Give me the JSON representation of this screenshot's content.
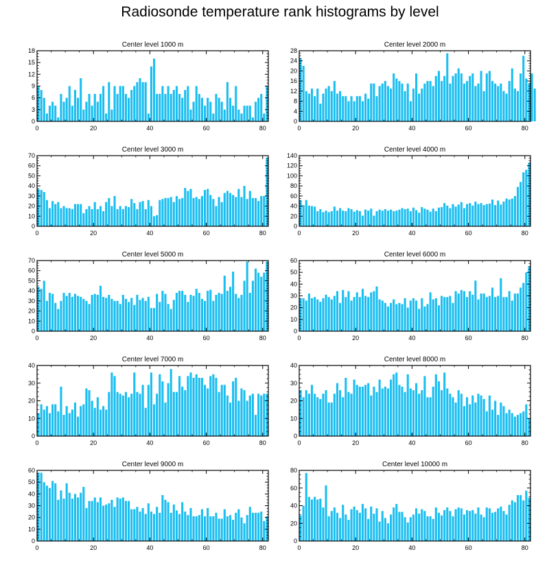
{
  "figure": {
    "title": "Radiosonde temperature rank histograms by level"
  },
  "style": {
    "bar_color": "#1BBEF0",
    "axis_color": "#000000"
  },
  "chart_data": [
    {
      "type": "bar",
      "title": "Center level 1000 m",
      "x_ticks": [
        0,
        20,
        40,
        60,
        80
      ],
      "y_ticks": [
        0,
        3,
        6,
        9,
        12,
        15,
        18
      ],
      "ylim": [
        0,
        18
      ],
      "xlim": [
        0,
        82
      ],
      "values": [
        9,
        8,
        6,
        2,
        4,
        5,
        4,
        1,
        7,
        5,
        6,
        9,
        4,
        8,
        6,
        11,
        3,
        5,
        7,
        4,
        7,
        5,
        7,
        9,
        2,
        10,
        3,
        9,
        7,
        9,
        9,
        7,
        6,
        8,
        9,
        10,
        11,
        10,
        10,
        2,
        14,
        16,
        7,
        7,
        9,
        7,
        9,
        7,
        8,
        9,
        7,
        6,
        8,
        9,
        3,
        5,
        9,
        7,
        6,
        4,
        6,
        5,
        2,
        7,
        6,
        5,
        3,
        10,
        6,
        4,
        9,
        3,
        2,
        4,
        4,
        4,
        1,
        5,
        6,
        7,
        2,
        9
      ]
    },
    {
      "type": "bar",
      "title": "Center level 2000 m",
      "x_ticks": [
        0,
        20,
        40,
        60,
        80
      ],
      "y_ticks": [
        0,
        4,
        8,
        12,
        16,
        20,
        24,
        28
      ],
      "ylim": [
        0,
        28
      ],
      "xlim": [
        0,
        82
      ],
      "values": [
        25,
        22,
        12,
        11,
        13,
        10,
        13,
        7,
        11,
        13,
        14,
        12,
        16,
        11,
        12,
        10,
        10,
        8,
        10,
        8,
        10,
        10,
        8,
        11,
        9,
        15,
        15,
        10,
        14,
        15,
        16,
        14,
        13,
        19,
        17,
        16,
        15,
        12,
        15,
        8,
        13,
        19,
        11,
        13,
        15,
        16,
        16,
        14,
        18,
        20,
        16,
        18,
        27,
        15,
        18,
        19,
        21,
        19,
        15,
        16,
        18,
        19,
        14,
        15,
        20,
        12,
        19,
        20,
        16,
        15,
        14,
        15,
        12,
        11,
        16,
        21,
        13,
        12,
        19,
        26,
        17,
        15,
        19,
        13
      ]
    },
    {
      "type": "bar",
      "title": "Center level 3000 m",
      "x_ticks": [
        0,
        20,
        40,
        60,
        80
      ],
      "y_ticks": [
        0,
        10,
        20,
        30,
        40,
        50,
        60,
        70
      ],
      "ylim": [
        0,
        70
      ],
      "xlim": [
        0,
        82
      ],
      "values": [
        37,
        36,
        34,
        26,
        18,
        25,
        22,
        24,
        18,
        20,
        18,
        18,
        17,
        22,
        22,
        22,
        13,
        17,
        20,
        17,
        24,
        17,
        20,
        15,
        24,
        28,
        20,
        30,
        17,
        20,
        17,
        20,
        19,
        27,
        23,
        17,
        24,
        25,
        17,
        26,
        20,
        10,
        11,
        26,
        27,
        28,
        28,
        29,
        24,
        30,
        27,
        28,
        38,
        35,
        37,
        28,
        29,
        27,
        30,
        36,
        37,
        31,
        27,
        20,
        29,
        24,
        33,
        35,
        33,
        31,
        29,
        37,
        29,
        40,
        27,
        35,
        28,
        28,
        25,
        30,
        30,
        68
      ]
    },
    {
      "type": "bar",
      "title": "Center level 4000 m",
      "x_ticks": [
        0,
        20,
        40,
        60,
        80
      ],
      "y_ticks": [
        0,
        20,
        40,
        60,
        80,
        100,
        120,
        140
      ],
      "ylim": [
        0,
        140
      ],
      "xlim": [
        0,
        82
      ],
      "values": [
        52,
        42,
        52,
        41,
        40,
        39,
        30,
        34,
        28,
        31,
        28,
        30,
        39,
        31,
        36,
        31,
        30,
        36,
        34,
        29,
        32,
        30,
        21,
        33,
        31,
        35,
        21,
        30,
        33,
        31,
        34,
        31,
        33,
        30,
        31,
        33,
        36,
        34,
        35,
        30,
        37,
        32,
        27,
        38,
        35,
        33,
        29,
        35,
        30,
        37,
        38,
        46,
        41,
        36,
        44,
        39,
        43,
        48,
        36,
        44,
        46,
        41,
        49,
        44,
        46,
        42,
        44,
        45,
        53,
        42,
        51,
        43,
        49,
        55,
        53,
        55,
        60,
        78,
        88,
        107,
        112,
        126
      ]
    },
    {
      "type": "bar",
      "title": "Center level 5000 m",
      "x_ticks": [
        0,
        20,
        40,
        60,
        80
      ],
      "y_ticks": [
        0,
        10,
        20,
        30,
        40,
        50,
        60,
        70
      ],
      "ylim": [
        0,
        70
      ],
      "xlim": [
        0,
        82
      ],
      "values": [
        44,
        42,
        50,
        30,
        38,
        37,
        28,
        22,
        30,
        38,
        35,
        38,
        34,
        37,
        35,
        34,
        32,
        30,
        27,
        36,
        37,
        36,
        45,
        34,
        33,
        36,
        32,
        30,
        30,
        27,
        36,
        32,
        29,
        33,
        26,
        36,
        31,
        33,
        30,
        34,
        23,
        23,
        37,
        29,
        40,
        37,
        27,
        22,
        31,
        38,
        40,
        40,
        36,
        29,
        36,
        35,
        42,
        38,
        32,
        30,
        40,
        41,
        30,
        36,
        38,
        37,
        55,
        40,
        44,
        59,
        37,
        33,
        36,
        50,
        69,
        38,
        50,
        62,
        58,
        54,
        58,
        69
      ]
    },
    {
      "type": "bar",
      "title": "Center level 6000 m",
      "x_ticks": [
        0,
        20,
        40,
        60,
        80
      ],
      "y_ticks": [
        0,
        10,
        20,
        30,
        40,
        50,
        60
      ],
      "ylim": [
        0,
        60
      ],
      "xlim": [
        0,
        82
      ],
      "values": [
        28,
        28,
        26,
        32,
        28,
        29,
        27,
        25,
        28,
        31,
        29,
        27,
        30,
        34,
        24,
        35,
        29,
        34,
        26,
        29,
        33,
        29,
        36,
        30,
        29,
        33,
        34,
        38,
        27,
        26,
        24,
        21,
        24,
        27,
        23,
        24,
        23,
        28,
        20,
        26,
        28,
        26,
        19,
        28,
        21,
        23,
        33,
        27,
        28,
        22,
        30,
        29,
        29,
        30,
        24,
        34,
        32,
        35,
        34,
        29,
        34,
        31,
        43,
        27,
        32,
        32,
        29,
        30,
        37,
        29,
        30,
        45,
        29,
        29,
        34,
        26,
        32,
        32,
        37,
        41,
        50,
        55
      ]
    },
    {
      "type": "bar",
      "title": "Center level 7000 m",
      "x_ticks": [
        0,
        20,
        40,
        60,
        80
      ],
      "y_ticks": [
        0,
        10,
        20,
        30,
        40
      ],
      "ylim": [
        0,
        40
      ],
      "xlim": [
        0,
        82
      ],
      "values": [
        13,
        18,
        15,
        17,
        13,
        18,
        18,
        14,
        28,
        12,
        17,
        13,
        15,
        19,
        11,
        17,
        18,
        27,
        26,
        20,
        16,
        22,
        15,
        17,
        15,
        25,
        36,
        34,
        25,
        24,
        23,
        25,
        22,
        24,
        36,
        25,
        24,
        29,
        16,
        29,
        36,
        18,
        24,
        35,
        31,
        19,
        30,
        38,
        25,
        25,
        34,
        28,
        26,
        34,
        36,
        33,
        35,
        33,
        33,
        29,
        27,
        34,
        35,
        33,
        25,
        29,
        29,
        23,
        19,
        31,
        33,
        20,
        27,
        26,
        20,
        23,
        24,
        12,
        24,
        23,
        24,
        24
      ]
    },
    {
      "type": "bar",
      "title": "Center level 8000 m",
      "x_ticks": [
        0,
        20,
        40,
        60,
        80
      ],
      "y_ticks": [
        0,
        10,
        20,
        30,
        40
      ],
      "ylim": [
        0,
        40
      ],
      "xlim": [
        0,
        82
      ],
      "values": [
        26,
        22,
        26,
        24,
        29,
        24,
        22,
        21,
        24,
        26,
        19,
        19,
        24,
        30,
        26,
        22,
        33,
        25,
        24,
        32,
        29,
        28,
        28,
        29,
        30,
        23,
        28,
        25,
        32,
        27,
        28,
        27,
        32,
        35,
        36,
        29,
        28,
        25,
        35,
        27,
        26,
        30,
        24,
        26,
        34,
        22,
        22,
        28,
        35,
        31,
        26,
        36,
        27,
        24,
        22,
        19,
        26,
        24,
        17,
        22,
        18,
        23,
        19,
        24,
        23,
        21,
        14,
        23,
        15,
        20,
        12,
        19,
        17,
        13,
        15,
        13,
        11,
        12,
        13,
        14,
        18,
        10
      ]
    },
    {
      "type": "bar",
      "title": "Center level 9000 m",
      "x_ticks": [
        0,
        20,
        40,
        60,
        80
      ],
      "y_ticks": [
        0,
        10,
        20,
        30,
        40,
        50,
        60
      ],
      "ylim": [
        0,
        60
      ],
      "xlim": [
        0,
        82
      ],
      "values": [
        58,
        58,
        50,
        47,
        45,
        51,
        49,
        35,
        43,
        36,
        49,
        41,
        36,
        40,
        37,
        41,
        46,
        28,
        34,
        34,
        37,
        33,
        37,
        30,
        31,
        32,
        35,
        29,
        37,
        36,
        37,
        34,
        34,
        27,
        27,
        29,
        25,
        28,
        23,
        32,
        25,
        23,
        29,
        24,
        39,
        35,
        33,
        24,
        31,
        26,
        23,
        33,
        25,
        22,
        28,
        21,
        21,
        22,
        27,
        21,
        28,
        21,
        21,
        24,
        19,
        19,
        27,
        21,
        22,
        18,
        24,
        27,
        20,
        15,
        22,
        29,
        24,
        24,
        24,
        25,
        17,
        21
      ]
    },
    {
      "type": "bar",
      "title": "Center level 10000 m",
      "x_ticks": [
        0,
        20,
        40,
        60,
        80
      ],
      "y_ticks": [
        0,
        20,
        40,
        60,
        80
      ],
      "ylim": [
        0,
        80
      ],
      "xlim": [
        0,
        82
      ],
      "values": [
        29,
        40,
        77,
        50,
        47,
        50,
        47,
        48,
        38,
        63,
        28,
        34,
        38,
        32,
        26,
        41,
        30,
        24,
        36,
        39,
        35,
        32,
        42,
        37,
        25,
        39,
        31,
        37,
        22,
        34,
        26,
        20,
        30,
        38,
        42,
        33,
        33,
        27,
        21,
        27,
        30,
        37,
        31,
        36,
        34,
        28,
        28,
        25,
        38,
        32,
        29,
        35,
        38,
        34,
        28,
        36,
        38,
        37,
        30,
        35,
        34,
        35,
        31,
        38,
        30,
        27,
        38,
        37,
        32,
        33,
        37,
        39,
        34,
        30,
        41,
        46,
        44,
        52,
        52,
        46,
        57,
        49
      ]
    }
  ]
}
